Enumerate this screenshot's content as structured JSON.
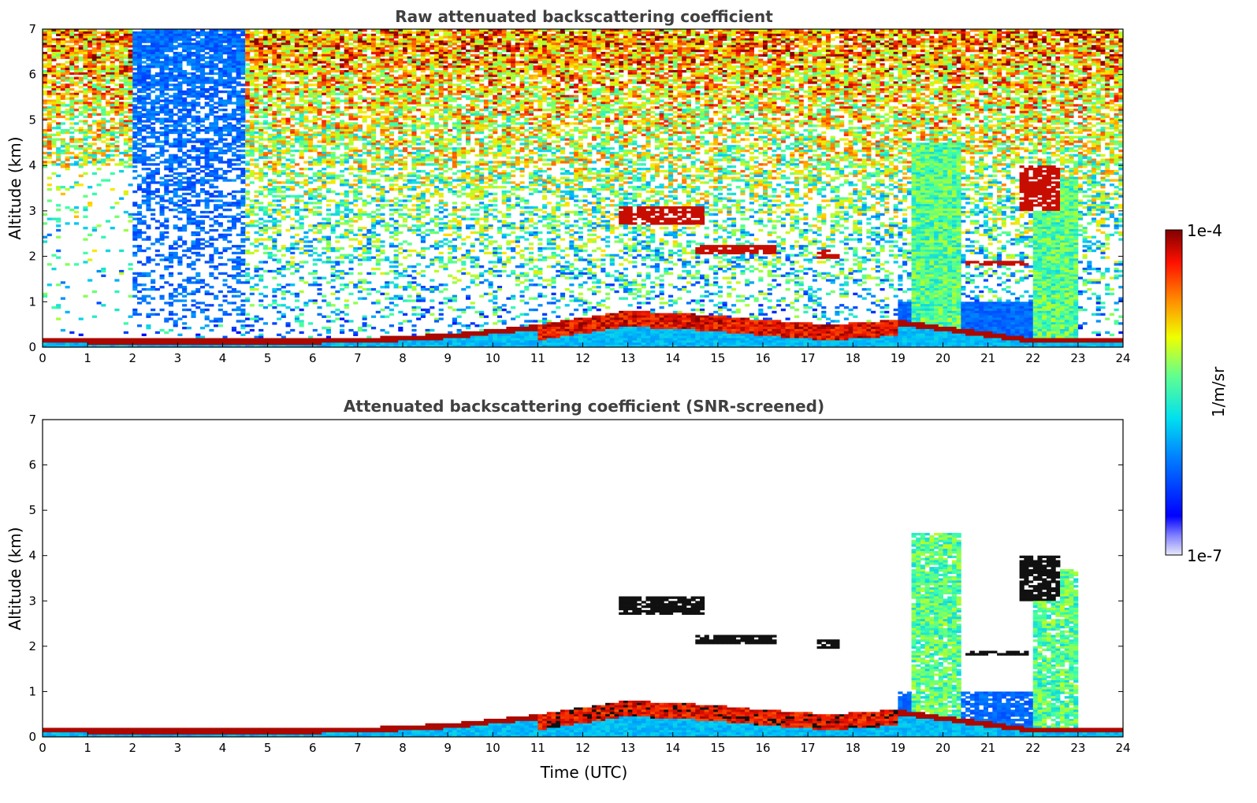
{
  "chart_data": [
    {
      "type": "heatmap",
      "title": "Raw attenuated backscattering coefficient",
      "xlabel": "",
      "ylabel": "Altitude (km)",
      "xlim": [
        0,
        24
      ],
      "ylim": [
        0,
        7
      ],
      "x_ticks": [
        "0",
        "1",
        "2",
        "3",
        "4",
        "5",
        "6",
        "7",
        "8",
        "9",
        "10",
        "11",
        "12",
        "13",
        "14",
        "15",
        "16",
        "17",
        "18",
        "19",
        "20",
        "21",
        "22",
        "23",
        "24"
      ],
      "y_ticks": [
        "0",
        "1",
        "2",
        "3",
        "4",
        "5",
        "6",
        "7"
      ],
      "screened": false,
      "features": {
        "boundary_layer_top_km": [
          [
            0,
            0.2
          ],
          [
            4,
            0.18
          ],
          [
            7,
            0.2
          ],
          [
            9,
            0.3
          ],
          [
            11,
            0.5
          ],
          [
            13,
            0.8
          ],
          [
            15,
            0.7
          ],
          [
            16,
            0.6
          ],
          [
            17.5,
            0.5
          ],
          [
            19,
            0.6
          ],
          [
            22,
            0.2
          ],
          [
            24,
            0.2
          ]
        ],
        "clouds": [
          {
            "t_start": 12.8,
            "t_end": 14.7,
            "alt_km": [
              2.6,
              3.2
            ]
          },
          {
            "t_start": 14.5,
            "t_end": 16.3,
            "alt_km": [
              2.0,
              2.3
            ]
          },
          {
            "t_start": 17.2,
            "t_end": 17.7,
            "alt_km": [
              1.9,
              2.2
            ]
          },
          {
            "t_start": 20.5,
            "t_end": 21.9,
            "alt_km": [
              1.8,
              1.9
            ]
          },
          {
            "t_start": 21.7,
            "t_end": 22.6,
            "alt_km": [
              2.8,
              4.2
            ]
          }
        ]
      }
    },
    {
      "type": "heatmap",
      "title": "Attenuated backscattering coefficient (SNR-screened)",
      "xlabel": "Time (UTC)",
      "ylabel": "Altitude (km)",
      "xlim": [
        0,
        24
      ],
      "ylim": [
        0,
        7
      ],
      "x_ticks": [
        "0",
        "1",
        "2",
        "3",
        "4",
        "5",
        "6",
        "7",
        "8",
        "9",
        "10",
        "11",
        "12",
        "13",
        "14",
        "15",
        "16",
        "17",
        "18",
        "19",
        "20",
        "21",
        "22",
        "23",
        "24"
      ],
      "y_ticks": [
        "0",
        "1",
        "2",
        "3",
        "4",
        "5",
        "6",
        "7"
      ],
      "screened": true
    }
  ],
  "colorbar": {
    "label": "1/m/sr",
    "max_label": "1e-4",
    "min_label": "1e-7",
    "scale": "log",
    "range": [
      1e-07,
      0.0001
    ],
    "colormap": "jet"
  }
}
